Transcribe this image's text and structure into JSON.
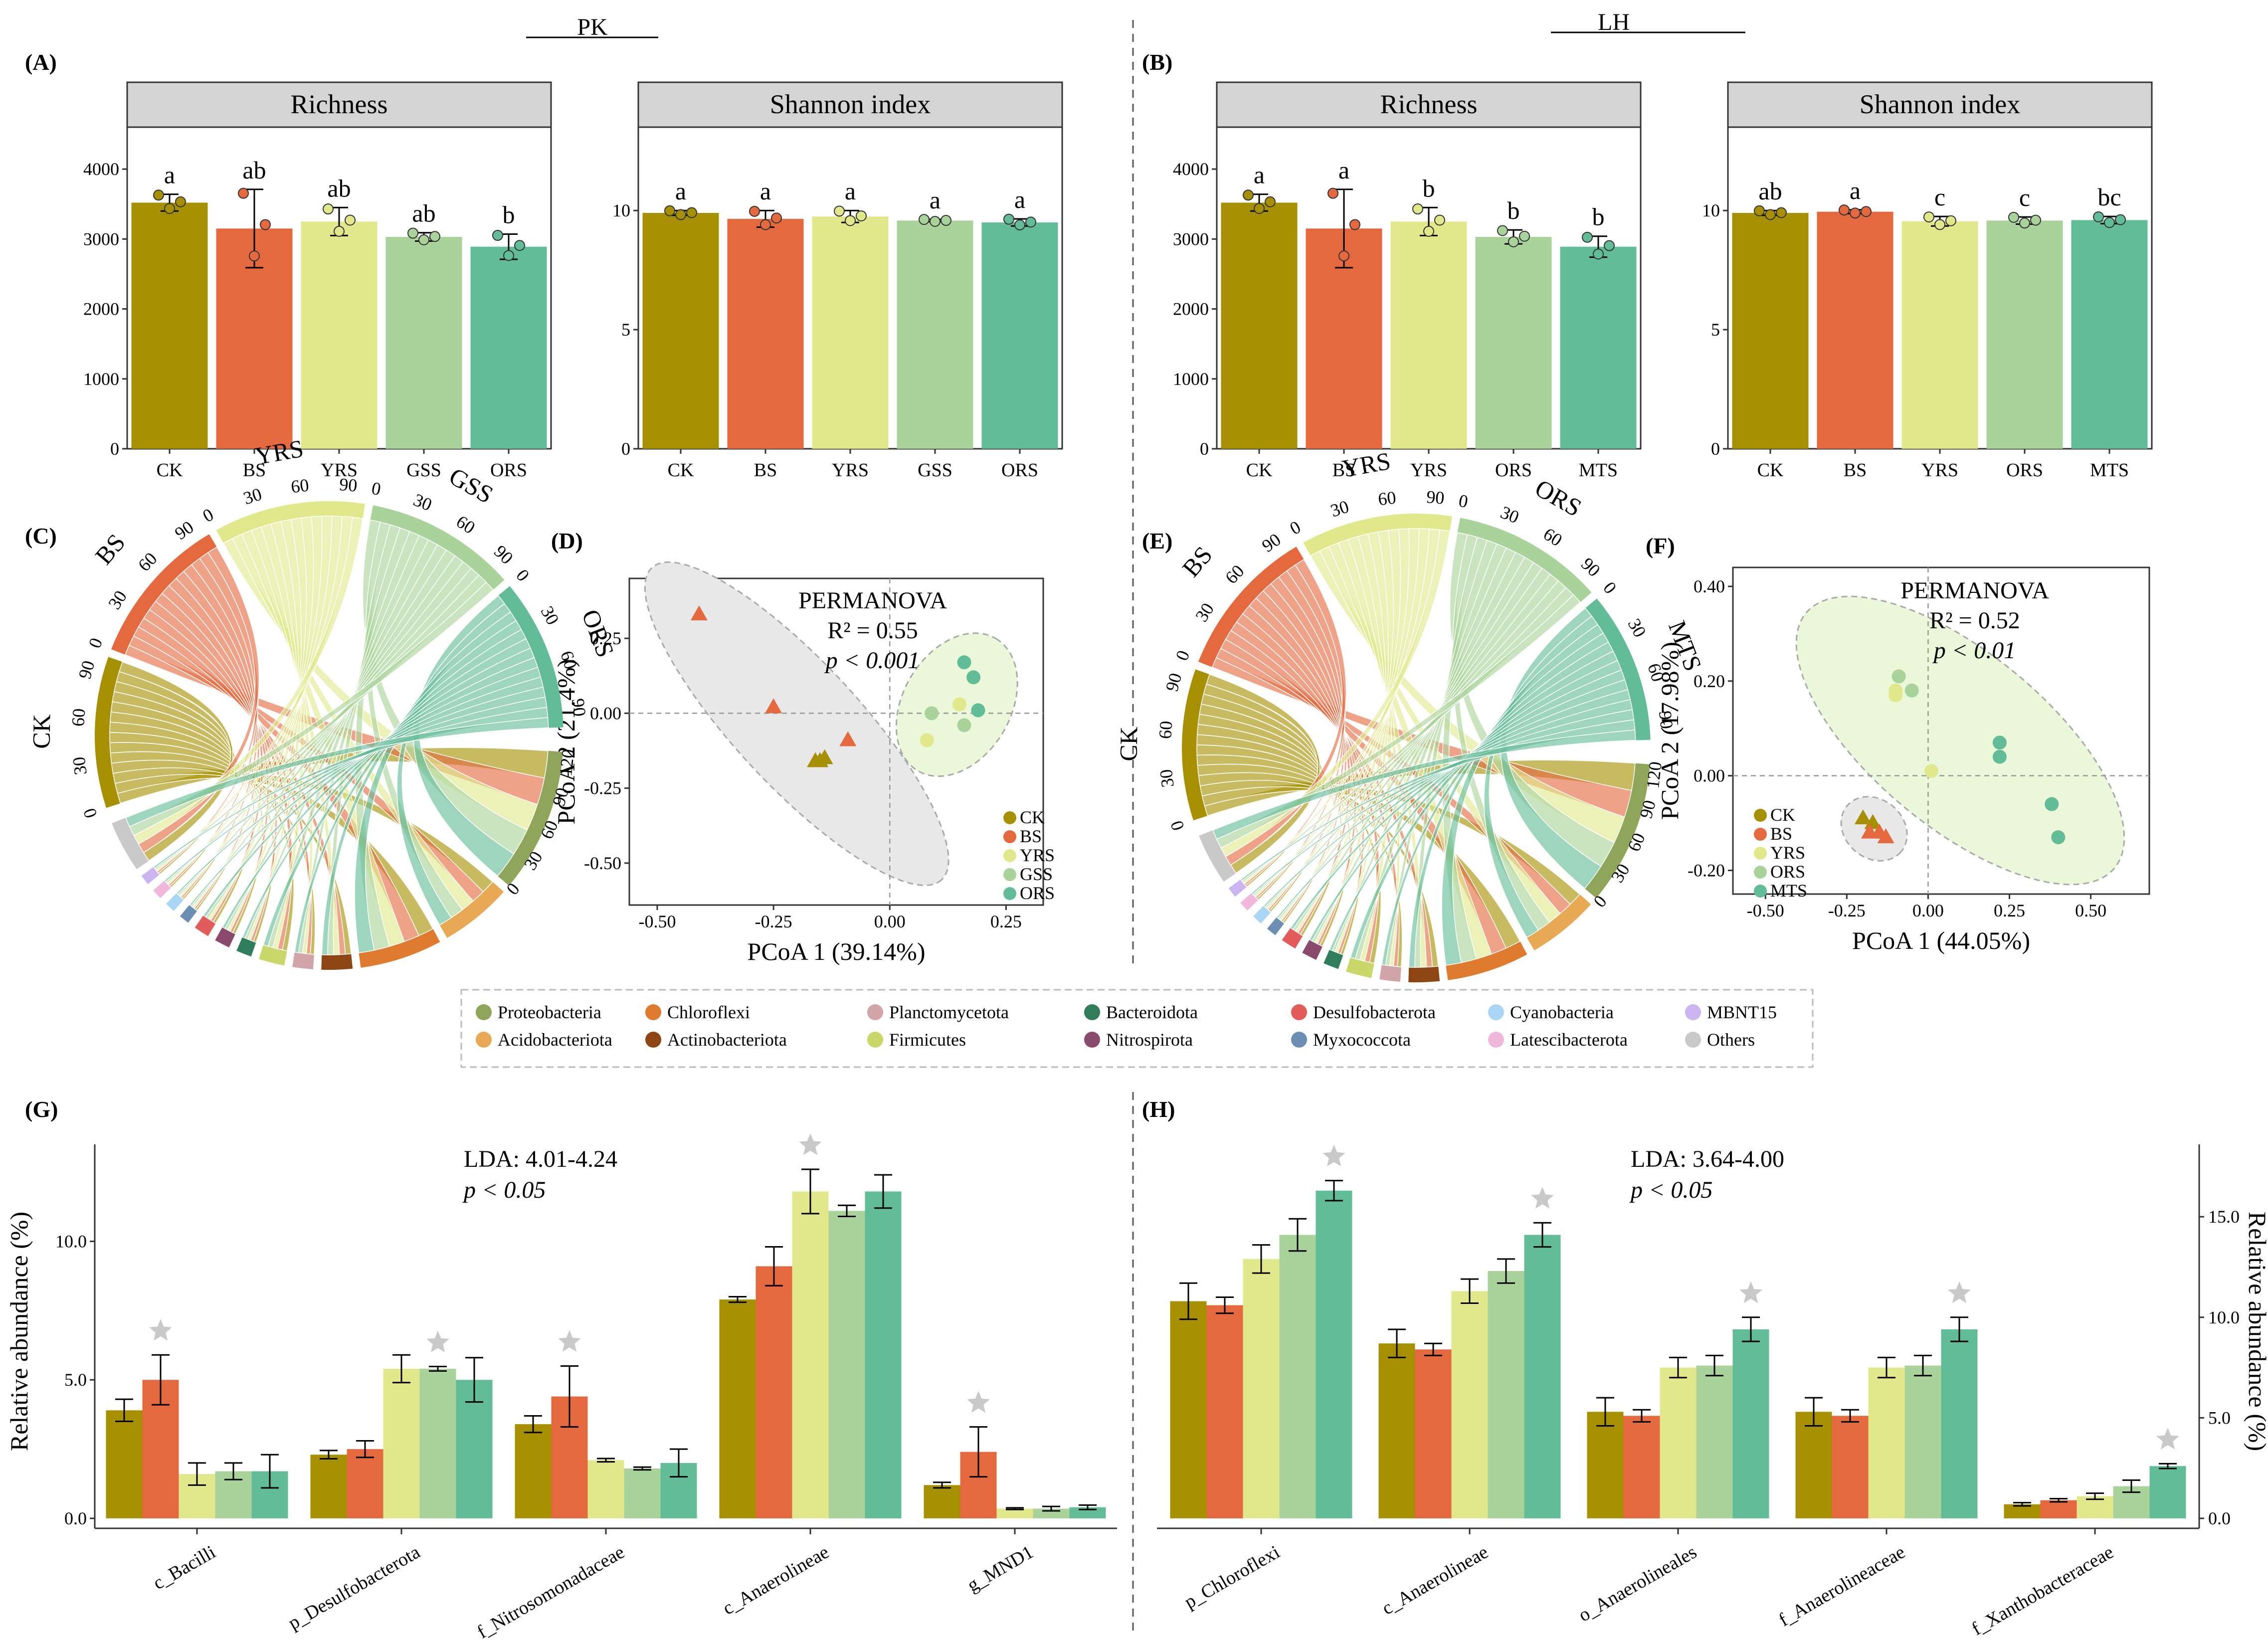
{
  "colors": {
    "CK": "#A68F00",
    "BS": "#E4693F",
    "YRS": "#E1E88C",
    "GSS": "#A9D39A",
    "ORS": "#A9D39A",
    "ORS_PK": "#63BC98",
    "MTS": "#63BC98",
    "strip": "#D4D4D4"
  },
  "headers": {
    "pk": "PK",
    "lh": "LH"
  },
  "panel_labels": {
    "A": "(A)",
    "B": "(B)",
    "C": "(C)",
    "D": "(D)",
    "E": "(E)",
    "F": "(F)",
    "G": "(G)",
    "H": "(H)"
  },
  "chart_data": [
    {
      "id": "A-richness",
      "type": "bar",
      "title": "Richness",
      "categories": [
        "CK",
        "BS",
        "YRS",
        "GSS",
        "ORS"
      ],
      "values": [
        3520,
        3150,
        3250,
        3030,
        2890
      ],
      "errors": [
        120,
        560,
        200,
        60,
        180
      ],
      "letters": [
        "a",
        "ab",
        "ab",
        "ab",
        "b"
      ],
      "ylim": [
        0,
        4600
      ],
      "yticks": [
        0,
        1000,
        2000,
        3000,
        4000
      ]
    },
    {
      "id": "A-shannon",
      "type": "bar",
      "title": "Shannon index",
      "categories": [
        "CK",
        "BS",
        "YRS",
        "GSS",
        "ORS"
      ],
      "values": [
        9.9,
        9.65,
        9.75,
        9.58,
        9.5
      ],
      "errors": [
        0.1,
        0.35,
        0.25,
        0.05,
        0.15
      ],
      "letters": [
        "a",
        "a",
        "a",
        "a",
        "a"
      ],
      "ylim": [
        0,
        13.5
      ],
      "yticks": [
        0,
        5,
        10
      ]
    },
    {
      "id": "B-richness",
      "type": "bar",
      "title": "Richness",
      "categories": [
        "CK",
        "BS",
        "YRS",
        "ORS",
        "MTS"
      ],
      "values": [
        3520,
        3150,
        3250,
        3030,
        2890
      ],
      "errors": [
        120,
        560,
        200,
        100,
        150
      ],
      "letters": [
        "a",
        "a",
        "b",
        "b",
        "b"
      ],
      "ylim": [
        0,
        4600
      ],
      "yticks": [
        0,
        1000,
        2000,
        3000,
        4000
      ]
    },
    {
      "id": "B-shannon",
      "type": "bar",
      "title": "Shannon index",
      "categories": [
        "CK",
        "BS",
        "YRS",
        "ORS",
        "MTS"
      ],
      "values": [
        9.9,
        9.95,
        9.55,
        9.58,
        9.6
      ],
      "errors": [
        0.1,
        0.08,
        0.2,
        0.15,
        0.15
      ],
      "letters": [
        "ab",
        "a",
        "c",
        "c",
        "bc"
      ],
      "ylim": [
        0,
        13.5
      ],
      "yticks": [
        0,
        5,
        10
      ]
    },
    {
      "id": "D-pcoa",
      "type": "scatter",
      "xlabel": "PCoA 1 (39.14%)",
      "ylabel": "PCoA 2 (21.4%)",
      "xlim": [
        -0.56,
        0.33
      ],
      "ylim": [
        -0.64,
        0.45
      ],
      "xticks": [
        -0.5,
        -0.25,
        0.0,
        0.25
      ],
      "xticklabels": [
        "-0.50",
        "-0.25",
        "0.00",
        "0.25"
      ],
      "yticks": [
        -0.5,
        -0.25,
        0.0,
        0.25
      ],
      "yticklabels": [
        "-0.50",
        "-0.25",
        "0.00",
        "0.25"
      ],
      "annotation": [
        "PERMANOVA",
        "R² = 0.55",
        "p < 0.001"
      ],
      "legend": [
        "CK",
        "BS",
        "YRS",
        "GSS",
        "ORS"
      ],
      "points": [
        {
          "group": "BS",
          "shape": "tri",
          "x": -0.41,
          "y": 0.33
        },
        {
          "group": "BS",
          "shape": "tri",
          "x": -0.25,
          "y": 0.02
        },
        {
          "group": "BS",
          "shape": "tri",
          "x": -0.09,
          "y": -0.09
        },
        {
          "group": "CK",
          "shape": "tri",
          "x": -0.16,
          "y": -0.16
        },
        {
          "group": "CK",
          "shape": "tri",
          "x": -0.14,
          "y": -0.15
        },
        {
          "group": "CK",
          "shape": "tri",
          "x": -0.15,
          "y": -0.16
        },
        {
          "group": "YRS",
          "shape": "circ",
          "x": 0.15,
          "y": 0.03
        },
        {
          "group": "YRS",
          "shape": "circ",
          "x": 0.08,
          "y": -0.09
        },
        {
          "group": "GSS",
          "shape": "circ",
          "x": 0.09,
          "y": 0.0
        },
        {
          "group": "GSS",
          "shape": "circ",
          "x": 0.16,
          "y": -0.04
        },
        {
          "group": "ORS",
          "shape": "circ",
          "x": 0.16,
          "y": 0.17
        },
        {
          "group": "ORS",
          "shape": "circ",
          "x": 0.18,
          "y": 0.12
        },
        {
          "group": "ORS",
          "shape": "circ",
          "x": 0.19,
          "y": 0.01
        }
      ]
    },
    {
      "id": "F-pcoa",
      "type": "scatter",
      "xlabel": "PCoA 1 (44.05%)",
      "ylabel": "PCoA 2 (17.98%)",
      "xlim": [
        -0.6,
        0.68
      ],
      "ylim": [
        -0.25,
        0.44
      ],
      "xticks": [
        -0.5,
        -0.25,
        0.0,
        0.25,
        0.5
      ],
      "xticklabels": [
        "-0.50",
        "-0.25",
        "0.00",
        "0.25",
        "0.50"
      ],
      "yticks": [
        -0.2,
        0.0,
        0.2,
        0.4
      ],
      "yticklabels": [
        "-0.20",
        "0.00",
        "0.20",
        "0.40"
      ],
      "annotation": [
        "PERMANOVA",
        "R² = 0.52",
        "p < 0.01"
      ],
      "legend": [
        "CK",
        "BS",
        "YRS",
        "ORS",
        "MTS"
      ],
      "points": [
        {
          "group": "CK",
          "shape": "tri",
          "x": -0.2,
          "y": -0.09
        },
        {
          "group": "CK",
          "shape": "tri",
          "x": -0.17,
          "y": -0.1
        },
        {
          "group": "BS",
          "shape": "tri",
          "x": -0.18,
          "y": -0.12
        },
        {
          "group": "BS",
          "shape": "tri",
          "x": -0.15,
          "y": -0.12
        },
        {
          "group": "BS",
          "shape": "tri",
          "x": -0.13,
          "y": -0.13
        },
        {
          "group": "YRS",
          "shape": "circ",
          "x": -0.1,
          "y": 0.17
        },
        {
          "group": "YRS",
          "shape": "circ",
          "x": -0.1,
          "y": 0.18
        },
        {
          "group": "YRS",
          "shape": "circ",
          "x": 0.01,
          "y": 0.01
        },
        {
          "group": "ORS",
          "shape": "circ",
          "x": -0.09,
          "y": 0.21
        },
        {
          "group": "ORS",
          "shape": "circ",
          "x": -0.05,
          "y": 0.18
        },
        {
          "group": "MTS",
          "shape": "circ",
          "x": 0.22,
          "y": 0.07
        },
        {
          "group": "MTS",
          "shape": "circ",
          "x": 0.22,
          "y": 0.04
        },
        {
          "group": "MTS",
          "shape": "circ",
          "x": 0.38,
          "y": -0.06
        },
        {
          "group": "MTS",
          "shape": "circ",
          "x": 0.4,
          "y": -0.13
        }
      ]
    },
    {
      "id": "G-lefse",
      "type": "bar",
      "ylabel": "Relative abundance (%)",
      "annotation": [
        "LDA: 4.01-4.24",
        "p < 0.05"
      ],
      "series_names": [
        "CK",
        "BS",
        "YRS",
        "GSS",
        "ORS"
      ],
      "groups": [
        {
          "label": "c_Bacilli",
          "values": [
            3.9,
            5.0,
            1.6,
            1.7,
            1.7
          ],
          "errors": [
            0.4,
            0.9,
            0.4,
            0.3,
            0.6
          ],
          "star": 1
        },
        {
          "label": "p_Desulfobacterota",
          "values": [
            2.3,
            2.5,
            5.4,
            5.4,
            5.0
          ],
          "errors": [
            0.15,
            0.3,
            0.5,
            0.08,
            0.8
          ],
          "star": 3
        },
        {
          "label": "f_Nitrosomonadaceae",
          "values": [
            3.4,
            4.4,
            2.1,
            1.8,
            2.0
          ],
          "errors": [
            0.3,
            1.1,
            0.06,
            0.05,
            0.5
          ],
          "star": 1
        },
        {
          "label": "c_Anaerolineae",
          "values": [
            7.9,
            9.1,
            11.8,
            11.1,
            11.8
          ],
          "errors": [
            0.1,
            0.7,
            0.8,
            0.2,
            0.6
          ],
          "star": 2
        },
        {
          "label": "g_MND1",
          "values": [
            1.2,
            2.4,
            0.35,
            0.35,
            0.4
          ],
          "errors": [
            0.1,
            0.9,
            0.03,
            0.08,
            0.08
          ],
          "star": 1
        }
      ],
      "ylim": [
        0,
        13.5
      ],
      "yticks": [
        0,
        5,
        10
      ],
      "yticklabels": [
        "0.0",
        "5.0",
        "10.0"
      ]
    },
    {
      "id": "H-lefse",
      "type": "bar",
      "ylabel": "Relative abundance (%)",
      "annotation": [
        "LDA: 3.64-4.00",
        "p < 0.05"
      ],
      "series_names": [
        "CK",
        "BS",
        "YRS",
        "ORS",
        "MTS"
      ],
      "groups": [
        {
          "label": "p_Chloroflexi",
          "values": [
            10.8,
            10.6,
            12.9,
            14.1,
            16.3
          ],
          "errors": [
            0.9,
            0.4,
            0.7,
            0.8,
            0.5
          ],
          "star": 4
        },
        {
          "label": "c_Anaerolineae",
          "values": [
            8.7,
            8.4,
            11.3,
            12.3,
            14.1
          ],
          "errors": [
            0.7,
            0.3,
            0.6,
            0.6,
            0.6
          ],
          "star": 4
        },
        {
          "label": "o_Anaerolineales",
          "values": [
            5.3,
            5.1,
            7.5,
            7.6,
            9.4
          ],
          "errors": [
            0.7,
            0.3,
            0.5,
            0.5,
            0.6
          ],
          "star": 4
        },
        {
          "label": "f_Anaerolineaceae",
          "values": [
            5.3,
            5.1,
            7.5,
            7.6,
            9.4
          ],
          "errors": [
            0.7,
            0.3,
            0.5,
            0.5,
            0.6
          ],
          "star": 4
        },
        {
          "label": "f_Xanthobacteraceae",
          "values": [
            0.7,
            0.9,
            1.1,
            1.6,
            2.6
          ],
          "errors": [
            0.08,
            0.08,
            0.15,
            0.3,
            0.12
          ],
          "star": 4
        }
      ],
      "ylim": [
        0,
        18.6
      ],
      "yticks": [
        0,
        5,
        10,
        15
      ],
      "yticklabels": [
        "0.0",
        "5.0",
        "10.0",
        "15.0"
      ]
    }
  ],
  "chord": {
    "C": {
      "groups": [
        "CK",
        "BS",
        "YRS",
        "GSS",
        "ORS"
      ],
      "tick_labels": [
        "0",
        "30",
        "60",
        "90"
      ],
      "phyla_ticks": [
        "0",
        "30",
        "60",
        "90",
        "120"
      ]
    },
    "E": {
      "groups": [
        "CK",
        "BS",
        "YRS",
        "ORS",
        "MTS"
      ],
      "tick_labels": [
        "0",
        "30",
        "60",
        "90"
      ],
      "phyla_ticks": [
        "0",
        "30",
        "60",
        "90",
        "120"
      ]
    }
  },
  "phyla_legend": [
    {
      "name": "Proteobacteria",
      "color": "#8FA65A"
    },
    {
      "name": "Acidobacteriota",
      "color": "#E7A954"
    },
    {
      "name": "Chloroflexi",
      "color": "#DE7B2F"
    },
    {
      "name": "Actinobacteriota",
      "color": "#8C4513"
    },
    {
      "name": "Planctomycetota",
      "color": "#D1A5A8"
    },
    {
      "name": "Firmicutes",
      "color": "#C9D76A"
    },
    {
      "name": "Bacteroidota",
      "color": "#2F7D5B"
    },
    {
      "name": "Nitrospirota",
      "color": "#8A4A6E"
    },
    {
      "name": "Desulfobacterota",
      "color": "#E35C5C"
    },
    {
      "name": "Myxococcota",
      "color": "#6D8EB3"
    },
    {
      "name": "Cyanobacteria",
      "color": "#A9D6F5"
    },
    {
      "name": "Latescibacterota",
      "color": "#F0B8DA"
    },
    {
      "name": "MBNT15",
      "color": "#CBB4F0"
    },
    {
      "name": "Others",
      "color": "#C9C9C9"
    }
  ]
}
